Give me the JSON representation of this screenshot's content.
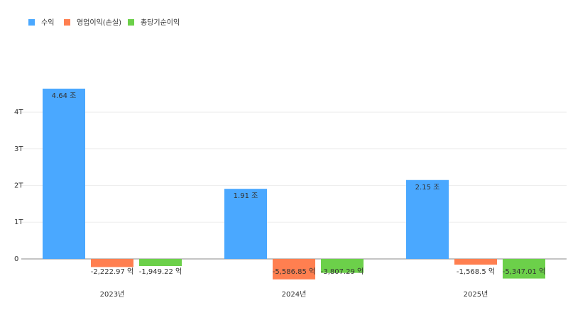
{
  "chart_data": {
    "type": "bar",
    "categories": [
      "2023년",
      "2024년",
      "2025년"
    ],
    "series": [
      {
        "name": "수익",
        "color": "#4aa8ff",
        "values": [
          4.64,
          1.91,
          2.15
        ],
        "value_labels": [
          "4.64 조",
          "1.91 조",
          "2.15 조"
        ]
      },
      {
        "name": "영업이익(손실)",
        "color": "#ff7f50",
        "values": [
          -0.222297,
          -0.558685,
          -0.15685
        ],
        "value_labels": [
          "-2,222.97 억",
          "-5,586.85 억",
          "-1,568.5 억"
        ]
      },
      {
        "name": "총당기순이익",
        "color": "#6cd04a",
        "values": [
          -0.194922,
          -0.380729,
          -0.534701
        ],
        "value_labels": [
          "-1,949.22 억",
          "-3,807.29 억",
          "-5,347.01 억"
        ]
      }
    ],
    "ylim": [
      -0.6,
      5.2
    ],
    "yticks": [
      0,
      {
        "value": 1,
        "label": "1T"
      },
      {
        "value": 2,
        "label": "2T"
      },
      {
        "value": 3,
        "label": "3T"
      },
      {
        "value": 4,
        "label": "4T"
      }
    ],
    "grid": true,
    "legend": "top-left"
  }
}
